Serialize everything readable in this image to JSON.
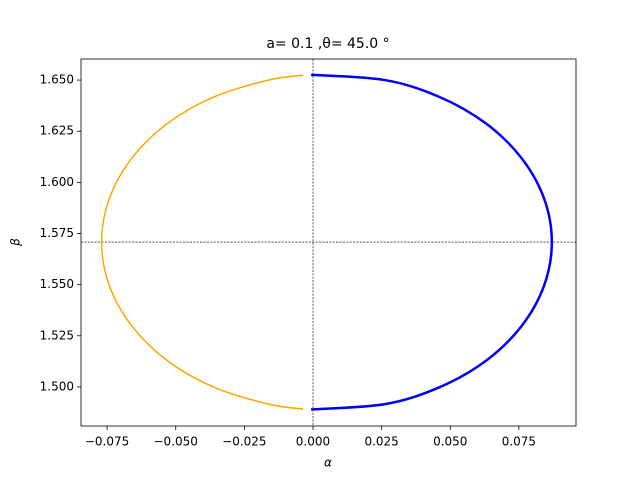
{
  "chart_data": {
    "type": "line",
    "title": "a= 0.1 ,θ= 45.0 °",
    "x_label": "α",
    "y_label": "β",
    "series": [
      {
        "name": "orange",
        "color": "#ffa500",
        "width": 1.5,
        "x": [
          -0.0036,
          -0.0162,
          -0.036,
          -0.053,
          -0.066,
          -0.0742,
          -0.077,
          -0.0742,
          -0.066,
          -0.053,
          -0.036,
          -0.0162,
          -0.0036
        ],
        "values": [
          1.6524,
          1.65,
          1.6418,
          1.6288,
          1.6118,
          1.592,
          1.5708,
          1.5496,
          1.5298,
          1.5128,
          1.4998,
          1.4916,
          1.4892
        ]
      },
      {
        "name": "blue",
        "color": "#0000ff",
        "width": 2.5,
        "x": [
          -0.0007,
          0.0262,
          0.046,
          0.063,
          0.076,
          0.0842,
          0.087,
          0.0842,
          0.076,
          0.063,
          0.046,
          0.0262,
          -0.0007
        ],
        "values": [
          1.6526,
          1.65,
          1.6418,
          1.6288,
          1.6118,
          1.592,
          1.5708,
          1.5496,
          1.5298,
          1.5128,
          1.4998,
          1.4916,
          1.489
        ]
      }
    ],
    "vlines": [
      0
    ],
    "hlines": [
      1.5708
    ],
    "xlim": [
      -0.0845,
      0.0958
    ],
    "ylim": [
      1.4809,
      1.6603
    ],
    "xticks": [
      {
        "value": -0.075,
        "label": "−0.075"
      },
      {
        "value": -0.05,
        "label": "−0.050"
      },
      {
        "value": -0.025,
        "label": "−0.025"
      },
      {
        "value": 0,
        "label": "0.000"
      },
      0.025,
      {
        "value": 0.05,
        "label": "0.050"
      },
      0.075
    ],
    "yticks": [
      {
        "value": 1.5,
        "label": "1.500"
      },
      1.525,
      {
        "value": 1.55,
        "label": "1.550"
      },
      1.575,
      {
        "value": 1.6,
        "label": "1.600"
      },
      1.625,
      {
        "value": 1.65,
        "label": "1.650"
      }
    ]
  }
}
